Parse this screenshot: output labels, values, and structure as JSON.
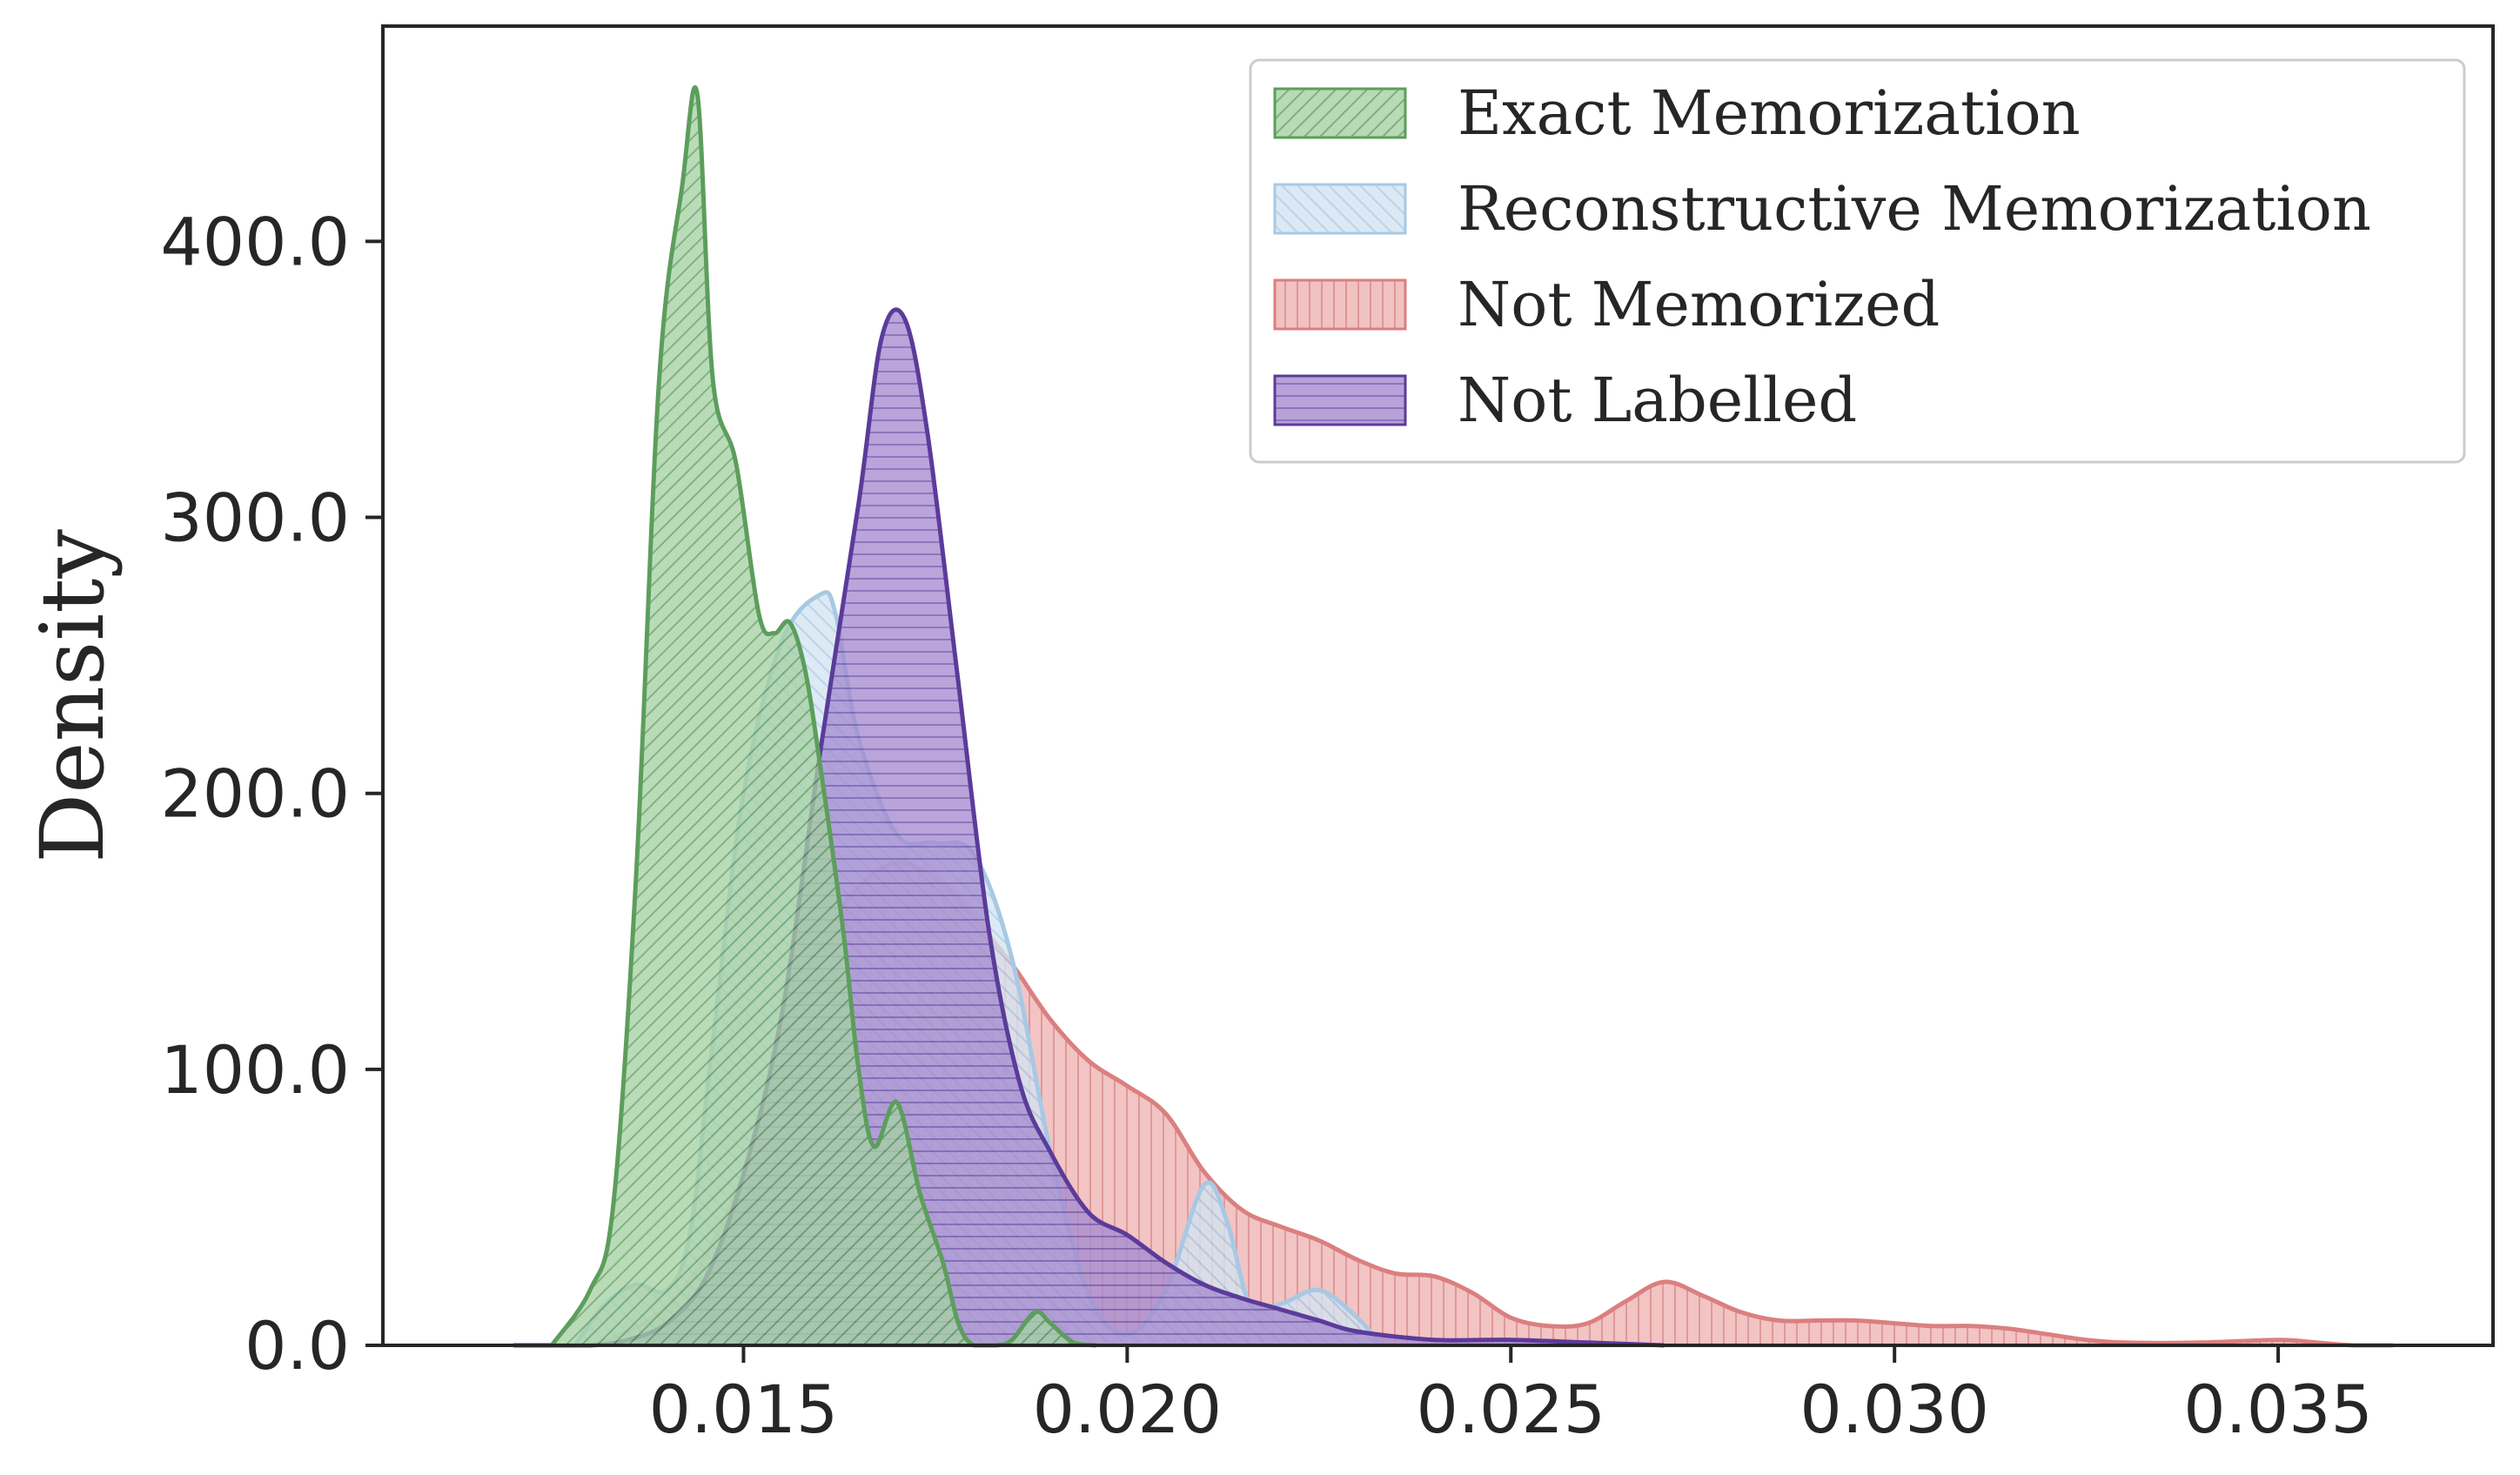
{
  "chart_data": {
    "type": "area",
    "title": "",
    "xlabel": "",
    "ylabel": "Density",
    "xlim": [
      0.0103,
      0.0378
    ],
    "ylim": [
      0,
      478
    ],
    "x_ticks": [
      0.015,
      0.02,
      0.025,
      0.03,
      0.035
    ],
    "x_tick_labels": [
      "0.015",
      "0.020",
      "0.025",
      "0.030",
      "0.035"
    ],
    "y_ticks": [
      0,
      100,
      200,
      300,
      400
    ],
    "y_tick_labels": [
      "0.0",
      "100.0",
      "200.0",
      "300.0",
      "400.0"
    ],
    "grid": false,
    "legend_position": "top-right",
    "series": [
      {
        "name": "Not Memorized",
        "fill": "#e8a3a3",
        "line": "#db7f7f",
        "hatch": "vertical",
        "x": [
          0.013,
          0.0135,
          0.014,
          0.0145,
          0.015,
          0.0155,
          0.016,
          0.0165,
          0.017,
          0.0175,
          0.018,
          0.0185,
          0.019,
          0.0195,
          0.02,
          0.0205,
          0.021,
          0.0215,
          0.022,
          0.0225,
          0.023,
          0.0235,
          0.024,
          0.0245,
          0.025,
          0.0255,
          0.026,
          0.0265,
          0.027,
          0.0275,
          0.028,
          0.0285,
          0.029,
          0.0295,
          0.03,
          0.0305,
          0.031,
          0.0315,
          0.032,
          0.0325,
          0.033,
          0.034,
          0.035,
          0.0355,
          0.036,
          0.0365
        ],
        "y": [
          0,
          5,
          14,
          32,
          62,
          102,
          145,
          166,
          175,
          169,
          155,
          138,
          118,
          103,
          94,
          84,
          63,
          49,
          43,
          38,
          31,
          26,
          25,
          19,
          10,
          7,
          8,
          16,
          23,
          18,
          12,
          9,
          9,
          9,
          8,
          7,
          7,
          6,
          4,
          2,
          1,
          1,
          2,
          1,
          0,
          0
        ]
      },
      {
        "name": "Reconstructive Memorization",
        "fill": "#c6dcee",
        "line": "#a7c9e4",
        "hatch": "backslash",
        "x": [
          0.0128,
          0.0132,
          0.0136,
          0.014,
          0.0143,
          0.0146,
          0.015,
          0.0155,
          0.016,
          0.0162,
          0.0165,
          0.017,
          0.0175,
          0.018,
          0.0185,
          0.019,
          0.0195,
          0.02,
          0.0205,
          0.021,
          0.0213,
          0.0216,
          0.022,
          0.0225,
          0.023,
          0.0233
        ],
        "y": [
          0,
          15,
          22,
          20,
          40,
          110,
          200,
          255,
          272,
          265,
          220,
          185,
          182,
          178,
          140,
          70,
          18,
          4,
          20,
          58,
          45,
          15,
          15,
          20,
          10,
          0
        ]
      },
      {
        "name": "Not Labelled",
        "fill": "#9b80c8",
        "line": "#5b3b9a",
        "hatch": "horizontal",
        "x": [
          0.012,
          0.013,
          0.0135,
          0.014,
          0.0145,
          0.015,
          0.0155,
          0.016,
          0.0165,
          0.0168,
          0.0171,
          0.0174,
          0.0178,
          0.0182,
          0.0186,
          0.019,
          0.0195,
          0.02,
          0.0205,
          0.021,
          0.0215,
          0.022,
          0.0225,
          0.023,
          0.024,
          0.025,
          0.026,
          0.027
        ],
        "y": [
          0,
          0,
          2,
          8,
          24,
          62,
          120,
          215,
          305,
          365,
          372,
          330,
          240,
          150,
          95,
          70,
          48,
          40,
          30,
          22,
          17,
          13,
          9,
          5,
          2,
          2,
          1,
          0
        ]
      },
      {
        "name": "Exact Memorization",
        "fill": "#97c896",
        "line": "#5c9e5c",
        "hatch": "slash",
        "x": [
          0.0125,
          0.013,
          0.0133,
          0.0136,
          0.0139,
          0.0142,
          0.0144,
          0.0146,
          0.0149,
          0.0152,
          0.0154,
          0.0156,
          0.0158,
          0.016,
          0.0163,
          0.0165,
          0.0167,
          0.017,
          0.0173,
          0.0176,
          0.0178,
          0.018,
          0.0183,
          0.0185,
          0.0188,
          0.019,
          0.0193,
          0.0196
        ],
        "y": [
          0,
          20,
          50,
          170,
          350,
          420,
          453,
          350,
          320,
          265,
          258,
          262,
          245,
          210,
          150,
          100,
          72,
          88,
          55,
          30,
          8,
          0,
          0,
          2,
          12,
          8,
          1,
          0
        ]
      }
    ]
  },
  "legend_order": [
    "Exact Memorization",
    "Reconstructive Memorization",
    "Not Memorized",
    "Not Labelled"
  ]
}
